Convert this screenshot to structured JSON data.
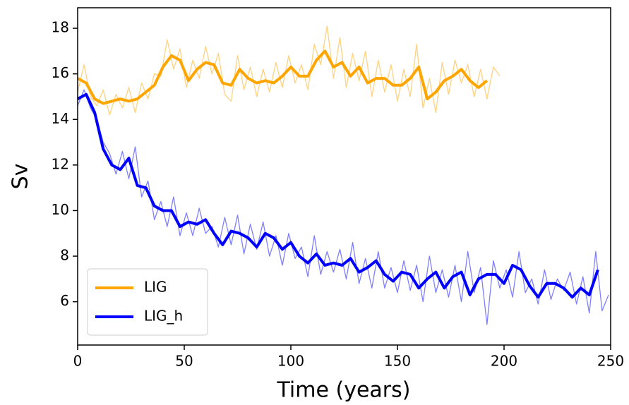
{
  "chart_data": {
    "type": "line",
    "x_label": "Time (years)",
    "y_label": "Sv",
    "xlim": [
      0,
      250
    ],
    "xticks": [
      0,
      50,
      100,
      150,
      200,
      250
    ],
    "ylim": [
      4.1,
      18.9
    ],
    "yticks": [
      6,
      8,
      10,
      12,
      14,
      16,
      18
    ],
    "grid": false,
    "legend": "lower left",
    "series": [
      {
        "color": "#ffa500",
        "opacity": 0.5,
        "x": [
          0,
          3,
          6,
          9,
          12,
          15,
          18,
          21,
          24,
          27,
          30,
          33,
          36,
          39,
          42,
          45,
          48,
          51,
          54,
          57,
          60,
          63,
          66,
          69,
          72,
          75,
          78,
          81,
          84,
          87,
          90,
          93,
          96,
          99,
          102,
          105,
          108,
          111,
          114,
          117,
          120,
          123,
          126,
          129,
          132,
          135,
          138,
          141,
          144,
          147,
          150,
          153,
          156,
          159,
          162,
          165,
          168,
          171,
          174,
          177,
          180,
          183,
          186,
          189,
          192,
          195,
          198
        ],
        "values": [
          15.2,
          16.4,
          15.0,
          14.6,
          15.3,
          14.2,
          15.1,
          14.5,
          15.4,
          14.3,
          15.6,
          14.9,
          16.0,
          15.9,
          17.5,
          16.2,
          17.1,
          15.4,
          16.6,
          15.8,
          17.2,
          16.0,
          16.9,
          15.1,
          14.8,
          16.8,
          15.3,
          16.3,
          15.0,
          16.2,
          15.2,
          16.5,
          15.4,
          16.8,
          15.6,
          16.4,
          15.3,
          17.3,
          16.4,
          18.1,
          15.8,
          17.6,
          15.4,
          16.9,
          15.7,
          17.0,
          15.0,
          16.6,
          15.2,
          16.4,
          14.8,
          16.2,
          15.0,
          17.3,
          14.5,
          15.8,
          14.3,
          16.5,
          15.1,
          16.6,
          15.6,
          16.4,
          15.0,
          16.2,
          14.9,
          16.3,
          15.9
        ]
      },
      {
        "color": "#0000ff",
        "opacity": 0.5,
        "x": [
          0,
          3,
          6,
          9,
          12,
          15,
          18,
          21,
          24,
          27,
          30,
          33,
          36,
          39,
          42,
          45,
          48,
          51,
          54,
          57,
          60,
          63,
          66,
          69,
          72,
          75,
          78,
          81,
          84,
          87,
          90,
          93,
          96,
          99,
          102,
          105,
          108,
          111,
          114,
          117,
          120,
          123,
          126,
          129,
          132,
          135,
          138,
          141,
          144,
          147,
          150,
          153,
          156,
          159,
          162,
          165,
          168,
          171,
          174,
          177,
          180,
          183,
          186,
          189,
          192,
          195,
          198,
          201,
          204,
          207,
          210,
          213,
          216,
          219,
          222,
          225,
          228,
          231,
          234,
          237,
          240,
          243,
          246,
          249
        ],
        "values": [
          14.6,
          15.3,
          14.5,
          14.0,
          13.0,
          12.5,
          11.6,
          12.6,
          11.4,
          12.8,
          10.6,
          11.3,
          9.6,
          10.4,
          9.3,
          10.6,
          8.9,
          9.9,
          8.9,
          10.1,
          9.0,
          9.3,
          8.4,
          9.7,
          8.5,
          9.8,
          8.1,
          9.4,
          8.3,
          9.5,
          8.0,
          8.9,
          7.6,
          9.0,
          7.9,
          8.4,
          7.1,
          8.9,
          7.2,
          8.2,
          7.3,
          8.3,
          7.0,
          8.6,
          6.8,
          7.9,
          6.6,
          8.2,
          6.6,
          7.5,
          6.4,
          7.8,
          6.5,
          7.6,
          6.0,
          8.0,
          6.4,
          7.4,
          6.2,
          7.6,
          6.0,
          8.2,
          6.4,
          7.5,
          5.0,
          7.8,
          6.6,
          7.4,
          6.2,
          8.2,
          6.4,
          7.0,
          5.9,
          7.4,
          6.1,
          7.0,
          6.5,
          7.3,
          5.9,
          7.1,
          5.5,
          8.2,
          5.6,
          6.3
        ]
      },
      {
        "name": "LIG",
        "color": "#ffa500",
        "x": [
          0,
          4,
          8,
          12,
          16,
          20,
          24,
          28,
          32,
          36,
          40,
          44,
          48,
          52,
          56,
          60,
          64,
          68,
          72,
          76,
          80,
          84,
          88,
          92,
          96,
          100,
          104,
          108,
          112,
          116,
          120,
          124,
          128,
          132,
          136,
          140,
          144,
          148,
          152,
          156,
          160,
          164,
          168,
          172,
          176,
          180,
          184,
          188,
          192
        ],
        "values": [
          15.8,
          15.6,
          14.9,
          14.7,
          14.8,
          14.9,
          14.8,
          14.9,
          15.2,
          15.5,
          16.3,
          16.8,
          16.6,
          15.7,
          16.2,
          16.5,
          16.4,
          15.6,
          15.5,
          16.2,
          15.8,
          15.6,
          15.7,
          15.6,
          15.9,
          16.3,
          15.9,
          15.9,
          16.6,
          17.0,
          16.3,
          16.5,
          15.9,
          16.3,
          15.6,
          15.8,
          15.8,
          15.5,
          15.5,
          15.8,
          16.3,
          14.9,
          15.2,
          15.7,
          15.9,
          16.2,
          15.7,
          15.4,
          15.7
        ]
      },
      {
        "name": "LIG_h",
        "color": "#0000ff",
        "x": [
          0,
          4,
          8,
          12,
          16,
          20,
          24,
          28,
          32,
          36,
          40,
          44,
          48,
          52,
          56,
          60,
          64,
          68,
          72,
          76,
          80,
          84,
          88,
          92,
          96,
          100,
          104,
          108,
          112,
          116,
          120,
          124,
          128,
          132,
          136,
          140,
          144,
          148,
          152,
          156,
          160,
          164,
          168,
          172,
          176,
          180,
          184,
          188,
          192,
          196,
          200,
          204,
          208,
          212,
          216,
          220,
          224,
          228,
          232,
          236,
          240,
          244
        ],
        "values": [
          14.9,
          15.1,
          14.3,
          12.7,
          12.0,
          11.8,
          12.3,
          11.1,
          11.0,
          10.2,
          10.0,
          10.0,
          9.3,
          9.5,
          9.4,
          9.6,
          9.0,
          8.5,
          9.1,
          9.0,
          8.8,
          8.4,
          9.0,
          8.8,
          8.3,
          8.6,
          8.0,
          7.7,
          8.1,
          7.6,
          7.7,
          7.6,
          7.9,
          7.3,
          7.5,
          7.8,
          7.2,
          6.9,
          7.3,
          7.2,
          6.6,
          7.0,
          7.3,
          6.6,
          7.1,
          7.3,
          6.3,
          7.0,
          7.2,
          7.2,
          6.8,
          7.6,
          7.4,
          6.7,
          6.2,
          6.8,
          6.8,
          6.6,
          6.2,
          6.6,
          6.3,
          7.4
        ]
      }
    ]
  }
}
